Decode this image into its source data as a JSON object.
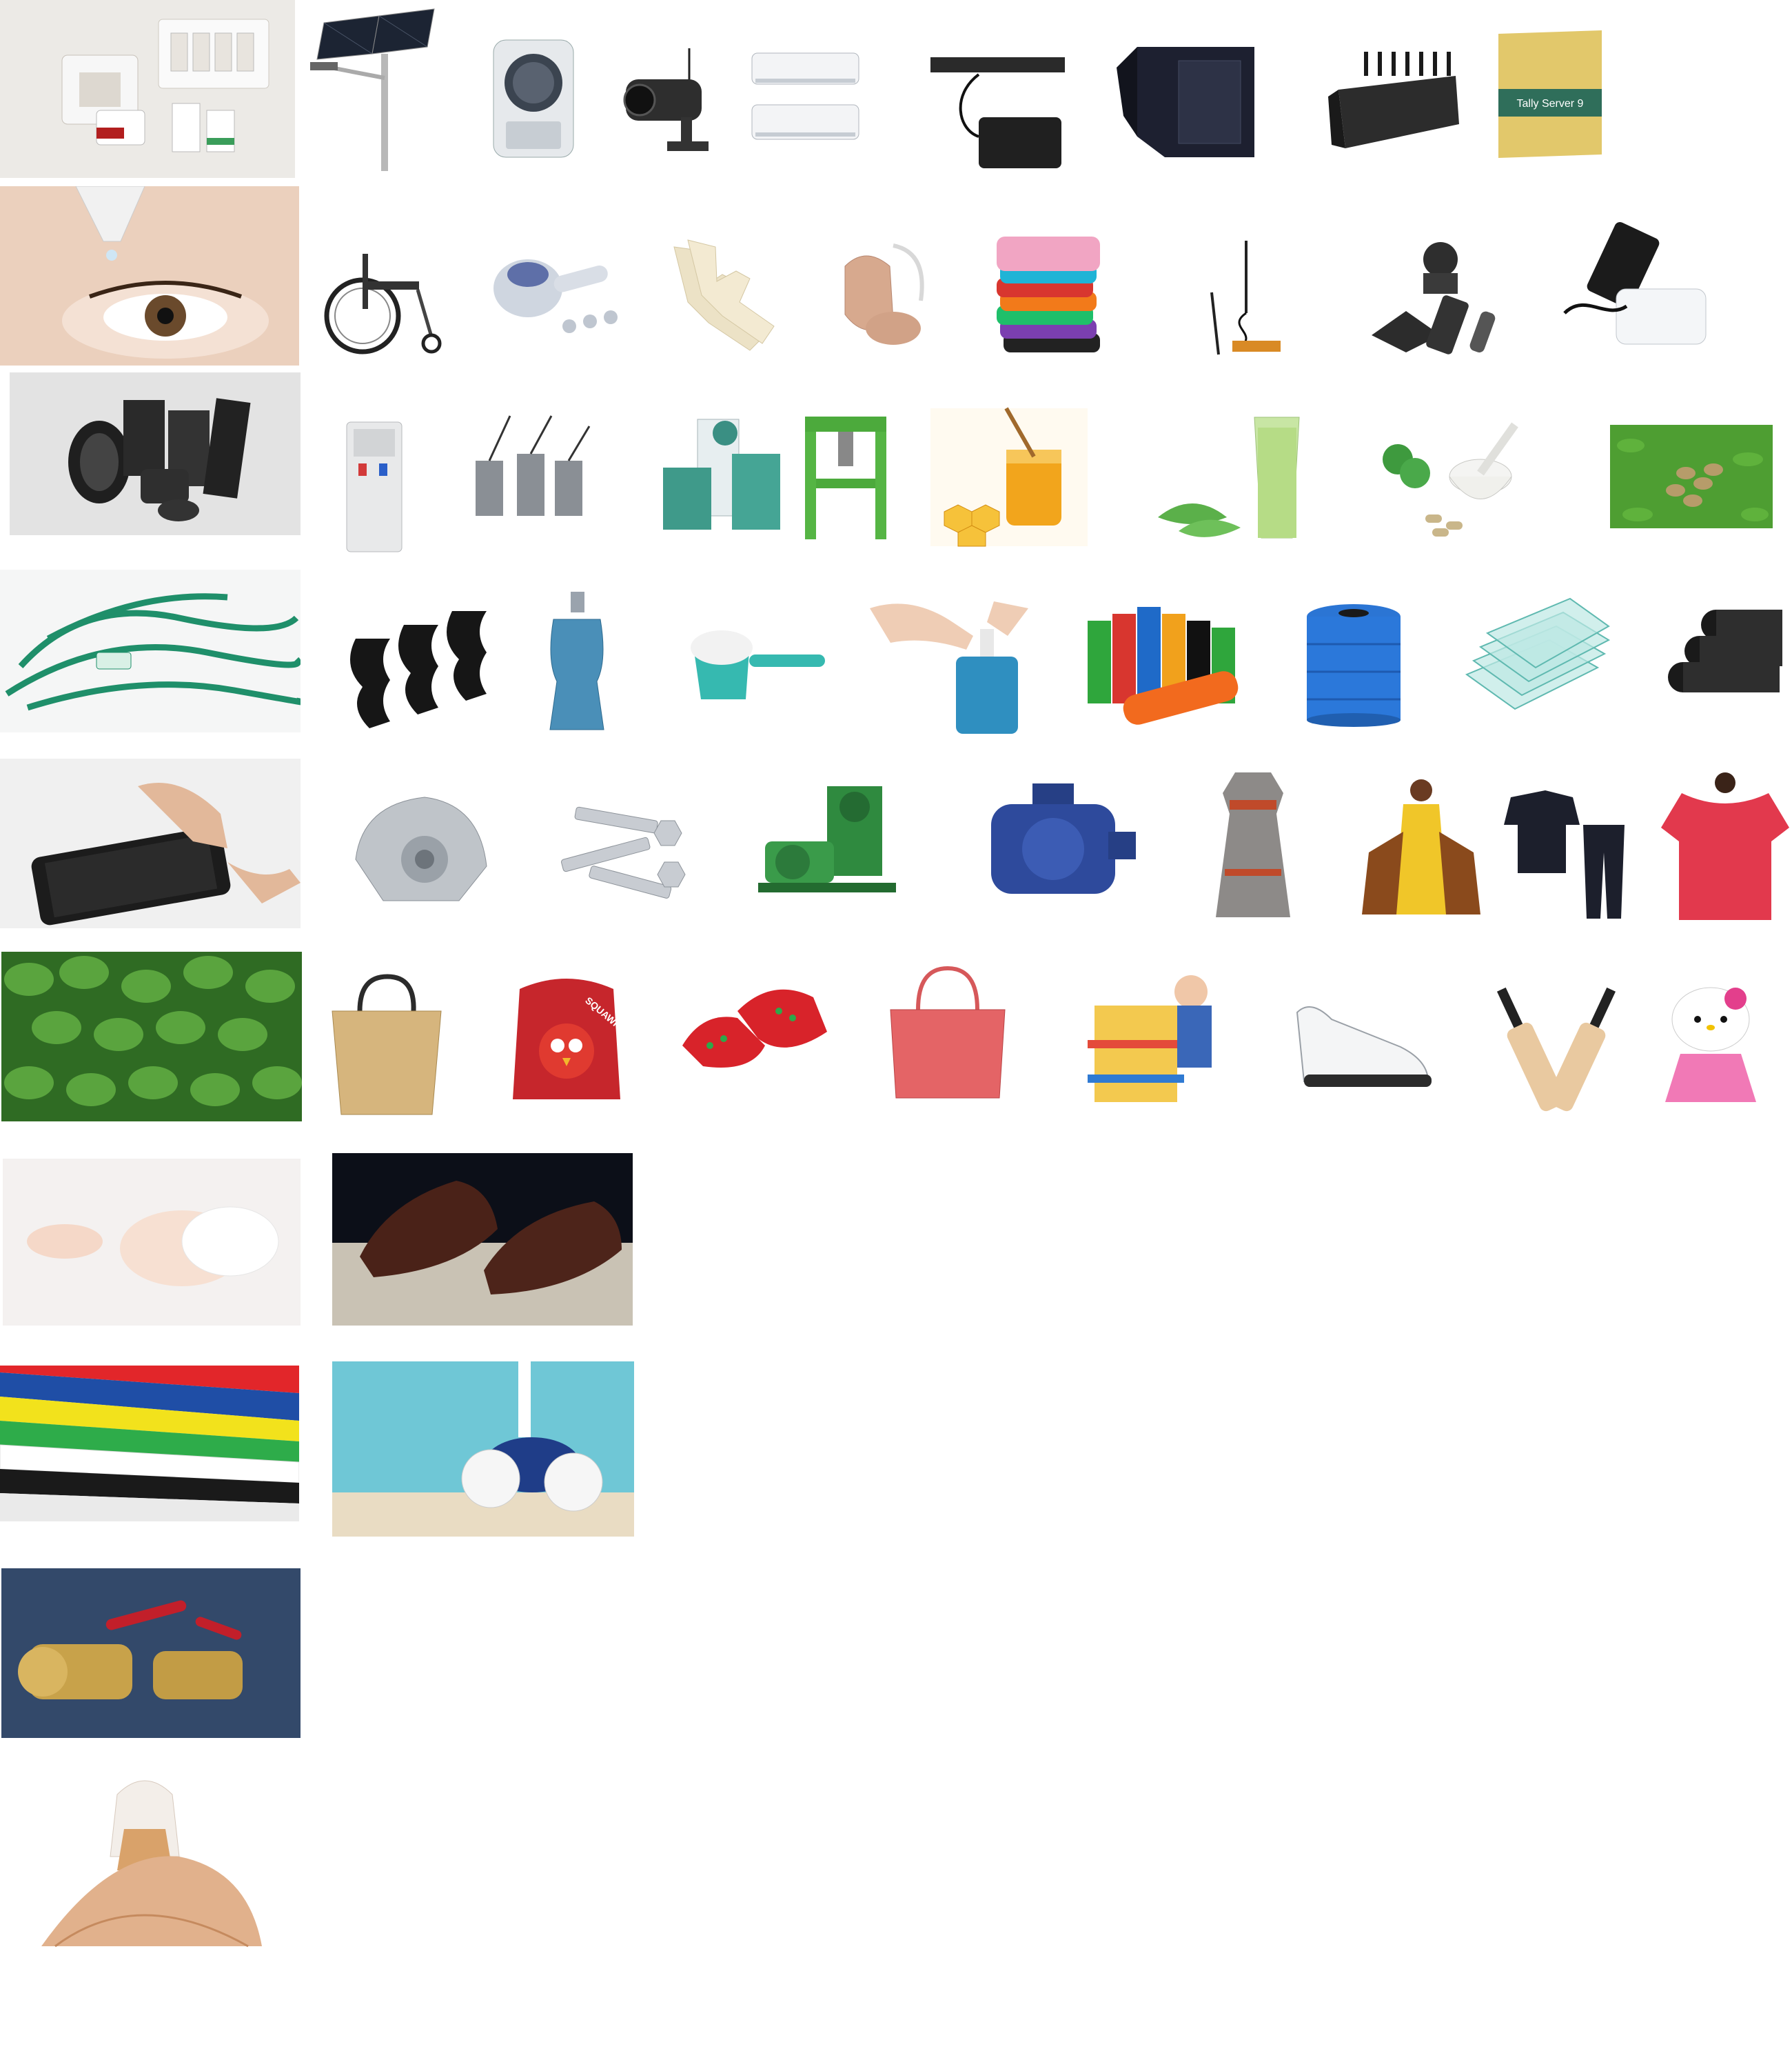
{
  "tally_box": {
    "label": "Tally Server 9"
  },
  "backpack": {
    "label": "SQUAWK!"
  },
  "palette": {
    "background": "#ffffff",
    "ink": "#1a1a1a",
    "green": "#1f8f5f",
    "blue": "#2a5fc9",
    "red": "#d23a3a"
  }
}
